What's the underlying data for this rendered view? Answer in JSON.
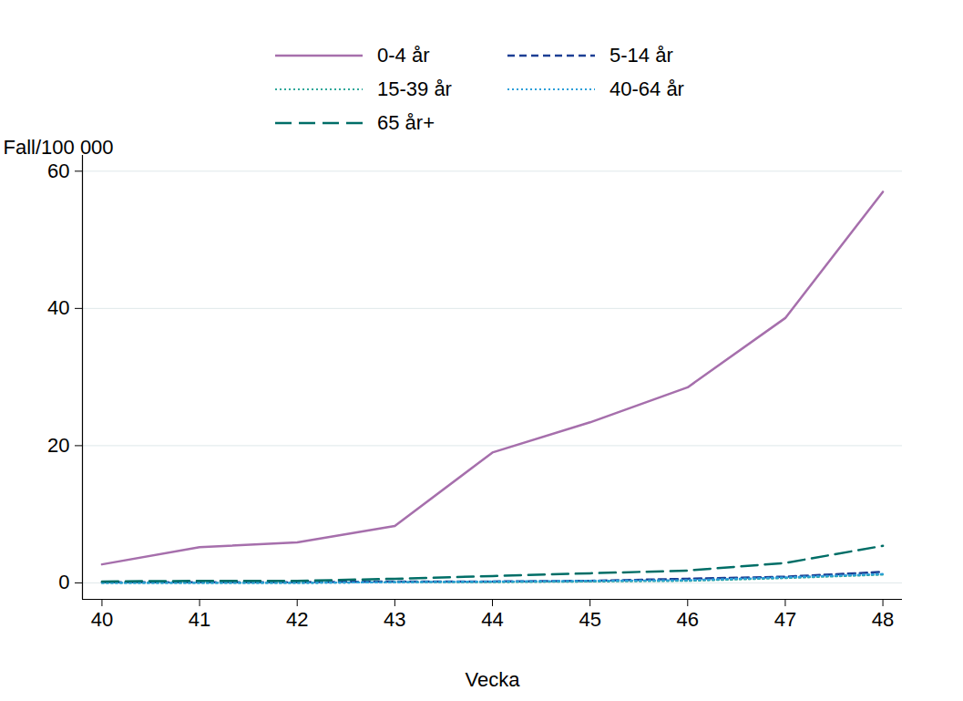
{
  "chart_data": {
    "type": "line",
    "x_label": "Vecka",
    "y_label": "Fall/100 000",
    "x": [
      40,
      41,
      42,
      43,
      44,
      45,
      46,
      47,
      48
    ],
    "xlim": [
      39.8,
      48.2
    ],
    "xticks": [
      40,
      41,
      42,
      43,
      44,
      45,
      46,
      47,
      48
    ],
    "ylim": [
      -2.4,
      62.3
    ],
    "yticks": [
      0,
      20,
      40,
      60
    ],
    "grid": true,
    "legend": "top",
    "series": [
      {
        "name": "0-4 år",
        "color": "#a66fac",
        "line_style": "solid",
        "values": [
          2.7,
          5.2,
          5.9,
          8.3,
          19,
          23.4,
          28.5,
          38.6,
          57
        ]
      },
      {
        "name": "5-14 år",
        "color": "#1c3f94",
        "line_style": "dashed",
        "values": [
          0.1,
          0.1,
          0.1,
          0.2,
          0.2,
          0.3,
          0.6,
          0.9,
          1.6
        ]
      },
      {
        "name": "15-39 år",
        "color": "#2fa89a",
        "line_style": "dotted",
        "values": [
          0,
          0,
          0,
          0.1,
          0.1,
          0.2,
          0.3,
          0.7,
          1.2
        ]
      },
      {
        "name": "40-64 år",
        "color": "#2a9fd9",
        "line_style": "dotted",
        "values": [
          0,
          0,
          0,
          0.1,
          0.2,
          0.3,
          0.4,
          0.8,
          1.3
        ]
      },
      {
        "name": "65 år+",
        "color": "#006e67",
        "line_style": "longdash",
        "values": [
          0.2,
          0.3,
          0.3,
          0.6,
          1.0,
          1.4,
          1.8,
          2.9,
          5.4
        ]
      }
    ]
  }
}
